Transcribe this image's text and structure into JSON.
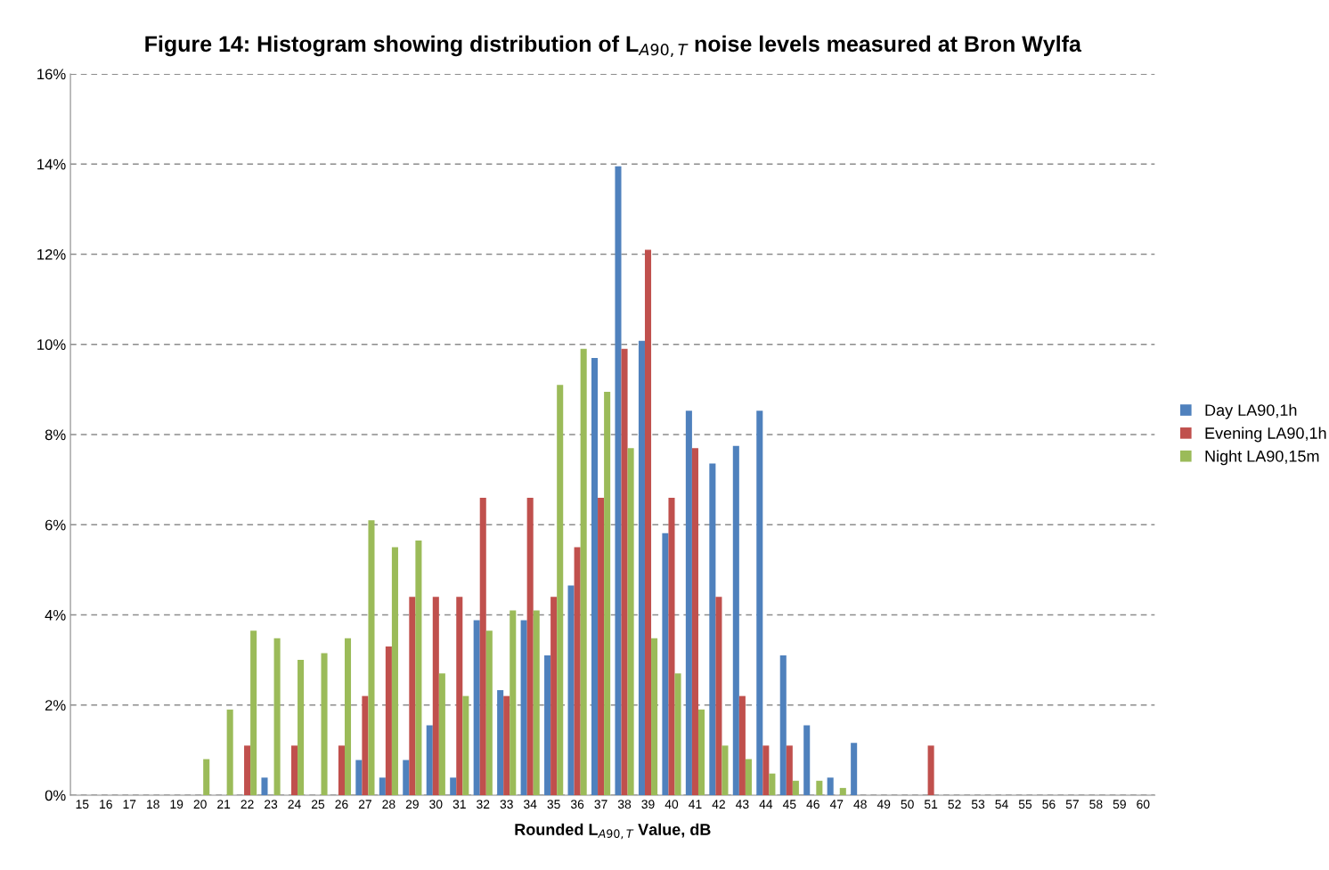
{
  "chart_data": {
    "type": "bar",
    "title": "Figure 14: Histogram showing distribution of L$_{A90,T}$ noise levels measured at Bron Wylfa",
    "xlabel": "Rounded L$_{A90,T}$ Value, dB",
    "categories": [
      "15",
      "16",
      "17",
      "18",
      "19",
      "20",
      "21",
      "22",
      "23",
      "24",
      "25",
      "26",
      "27",
      "28",
      "29",
      "30",
      "31",
      "32",
      "33",
      "34",
      "35",
      "36",
      "37",
      "38",
      "39",
      "40",
      "41",
      "42",
      "43",
      "44",
      "45",
      "46",
      "47",
      "48",
      "49",
      "50",
      "51",
      "52",
      "53",
      "54",
      "55",
      "56",
      "57",
      "58",
      "59",
      "60"
    ],
    "series": [
      {
        "name": "Day LA90,1h",
        "color": "#4f81bd",
        "values": [
          0,
          0,
          0,
          0,
          0,
          0,
          0,
          0,
          0.39,
          0,
          0,
          0,
          0.78,
          0.39,
          0.78,
          1.55,
          0.39,
          3.88,
          2.33,
          3.88,
          3.1,
          4.65,
          9.7,
          13.95,
          10.08,
          5.81,
          8.53,
          7.36,
          7.75,
          8.53,
          3.1,
          1.55,
          0.39,
          1.16,
          0,
          0,
          0,
          0,
          0,
          0,
          0,
          0,
          0,
          0,
          0,
          0
        ]
      },
      {
        "name": "Evening LA90,1h",
        "color": "#c0504d",
        "values": [
          0,
          0,
          0,
          0,
          0,
          0,
          0,
          1.1,
          0,
          1.1,
          0,
          1.1,
          2.2,
          3.3,
          4.4,
          4.4,
          4.4,
          6.6,
          2.2,
          6.6,
          4.4,
          5.5,
          6.6,
          9.9,
          12.1,
          6.6,
          7.7,
          4.4,
          2.2,
          1.1,
          1.1,
          0,
          0,
          0,
          0,
          0,
          1.1,
          0,
          0,
          0,
          0,
          0,
          0,
          0,
          0,
          0
        ]
      },
      {
        "name": "Night LA90,15m",
        "color": "#9bbb59",
        "values": [
          0,
          0,
          0,
          0,
          0,
          0.8,
          1.9,
          3.65,
          3.48,
          3.0,
          3.15,
          3.48,
          6.1,
          5.5,
          5.65,
          2.7,
          2.2,
          3.65,
          4.1,
          4.1,
          9.1,
          9.9,
          8.95,
          7.7,
          3.48,
          2.7,
          1.9,
          1.1,
          0.8,
          0.48,
          0.32,
          0.32,
          0.16,
          0,
          0,
          0,
          0,
          0,
          0,
          0,
          0,
          0,
          0,
          0,
          0,
          0
        ]
      }
    ],
    "ylim": [
      0,
      16
    ],
    "yticks": [
      {
        "value": 0,
        "label": "0%"
      },
      {
        "value": 2,
        "label": "2%"
      },
      {
        "value": 4,
        "label": "4%"
      },
      {
        "value": 6,
        "label": "6%"
      },
      {
        "value": 8,
        "label": "8%"
      },
      {
        "value": 10,
        "label": "10%"
      },
      {
        "value": 12,
        "label": "12%"
      },
      {
        "value": 14,
        "label": "14%"
      },
      {
        "value": 16,
        "label": "16%"
      }
    ],
    "grid": "y",
    "legend": "right"
  }
}
